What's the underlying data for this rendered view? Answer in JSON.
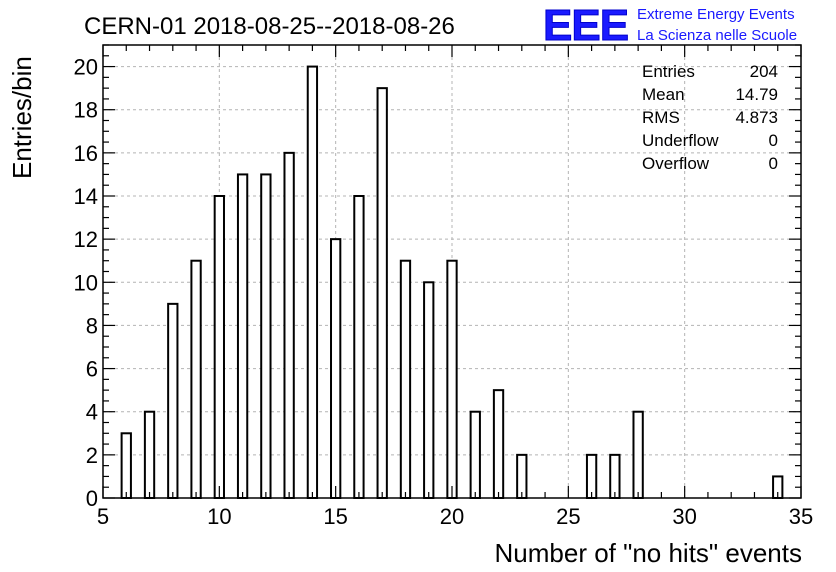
{
  "colors": {
    "bar_stroke": "#000000",
    "grid": "#b4b4b4",
    "logo": "#1a1aff"
  },
  "header": {
    "title": "CERN-01 2018-08-25--2018-08-26"
  },
  "logo": {
    "mark": "EEE",
    "line1": "Extreme Energy Events",
    "line2": "La Scienza nelle Scuole"
  },
  "stats": {
    "rows": [
      {
        "label": "Entries",
        "value": "204"
      },
      {
        "label": "Mean",
        "value": "14.79"
      },
      {
        "label": "RMS",
        "value": "4.873"
      },
      {
        "label": "Underflow",
        "value": "0"
      },
      {
        "label": "Overflow",
        "value": "0"
      }
    ]
  },
  "chart_data": {
    "type": "bar",
    "title": "CERN-01 2018-08-25--2018-08-26",
    "xlabel": "Number of \"no hits\" events",
    "ylabel": "Entries/bin",
    "xlim": [
      5,
      35
    ],
    "ylim": [
      0,
      21
    ],
    "grid": true,
    "x_ticks": [
      5,
      10,
      15,
      20,
      25,
      30,
      35
    ],
    "y_ticks": [
      0,
      2,
      4,
      6,
      8,
      10,
      12,
      14,
      16,
      18,
      20
    ],
    "bin_width": 0.4,
    "x": [
      6,
      7,
      8,
      9,
      10,
      11,
      12,
      13,
      14,
      15,
      16,
      17,
      18,
      19,
      20,
      21,
      22,
      23,
      26,
      27,
      28,
      34
    ],
    "values": [
      3,
      4,
      9,
      11,
      14,
      15,
      15,
      16,
      20,
      12,
      14,
      19,
      11,
      10,
      11,
      4,
      5,
      2,
      2,
      2,
      4,
      1
    ]
  }
}
